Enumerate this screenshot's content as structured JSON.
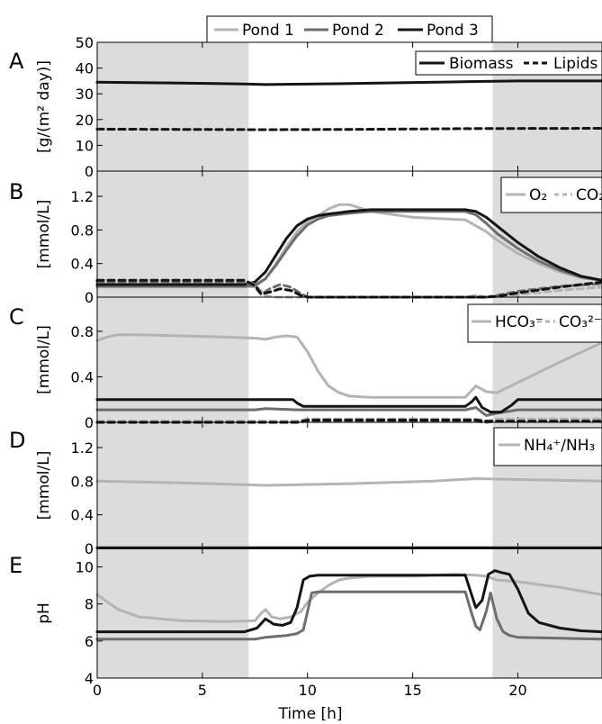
{
  "legend_top": [
    {
      "name": "Pond 1",
      "color": "#b4b4b4"
    },
    {
      "name": "Pond 2",
      "color": "#6e6e6e"
    },
    {
      "name": "Pond 3",
      "color": "#141414"
    }
  ],
  "xaxis": {
    "label": "Time [h]",
    "xlim": [
      0,
      24
    ],
    "ticks": [
      0,
      5,
      10,
      15,
      20
    ],
    "night_shading": [
      [
        0,
        7.2
      ],
      [
        18.8,
        24
      ]
    ]
  },
  "chart_data": [
    {
      "panel": "A",
      "type": "line",
      "ylabel": "[g/(m² day)]",
      "ylim": [
        0,
        50
      ],
      "yticks": [
        0,
        10,
        20,
        30,
        40,
        50
      ],
      "legend": [
        {
          "label": "Biomass",
          "style": "solid"
        },
        {
          "label": "Lipids",
          "style": "dashed"
        }
      ],
      "series": [
        {
          "pond": "Pond 3",
          "variable": "Biomass",
          "style": "solid",
          "x": [
            0,
            4,
            7,
            8,
            12,
            18,
            20,
            24
          ],
          "y": [
            34.5,
            34.2,
            33.8,
            33.6,
            34.0,
            34.8,
            35.0,
            35.0
          ]
        },
        {
          "pond": "Pond 3",
          "variable": "Lipids",
          "style": "dashed",
          "x": [
            0,
            8,
            12,
            18,
            24
          ],
          "y": [
            16.3,
            16.1,
            16.2,
            16.5,
            16.6
          ]
        }
      ]
    },
    {
      "panel": "B",
      "type": "line",
      "ylabel": "[mmol/L]",
      "ylim": [
        0,
        1.5
      ],
      "yticks": [
        0,
        0.4,
        0.8,
        1.2
      ],
      "ytick_labels": [
        "0",
        "0.4",
        "0.8",
        "1.2"
      ],
      "legend": [
        {
          "label": "O₂",
          "style": "solid"
        },
        {
          "label": "CO₂",
          "style": "dashed"
        }
      ],
      "series": [
        {
          "pond": "Pond 1",
          "variable": "O2",
          "style": "solid",
          "x": [
            0,
            7,
            7.5,
            8,
            8.5,
            9,
            9.5,
            10,
            10.5,
            11,
            11.5,
            12,
            13,
            15,
            17.5,
            18,
            18.5,
            19,
            20,
            21,
            22,
            23,
            24
          ],
          "y": [
            0.12,
            0.12,
            0.13,
            0.22,
            0.4,
            0.6,
            0.78,
            0.9,
            0.97,
            1.05,
            1.1,
            1.1,
            1.02,
            0.95,
            0.92,
            0.85,
            0.78,
            0.68,
            0.52,
            0.4,
            0.3,
            0.23,
            0.2
          ]
        },
        {
          "pond": "Pond 2",
          "variable": "O2",
          "style": "solid",
          "x": [
            0,
            7,
            7.5,
            8,
            8.5,
            9,
            9.5,
            10,
            10.5,
            11,
            12,
            13,
            15,
            17.5,
            18,
            18.5,
            19,
            20,
            21,
            22,
            23,
            24
          ],
          "y": [
            0.13,
            0.13,
            0.14,
            0.22,
            0.38,
            0.56,
            0.73,
            0.86,
            0.93,
            0.97,
            1.0,
            1.02,
            1.02,
            1.02,
            0.98,
            0.88,
            0.76,
            0.58,
            0.43,
            0.32,
            0.24,
            0.2
          ]
        },
        {
          "pond": "Pond 3",
          "variable": "O2",
          "style": "solid",
          "x": [
            0,
            7,
            7.5,
            8,
            8.5,
            9,
            9.5,
            10,
            10.5,
            11,
            12,
            13,
            15,
            17.5,
            18,
            18.5,
            19,
            20,
            21,
            22,
            23,
            24
          ],
          "y": [
            0.15,
            0.15,
            0.18,
            0.3,
            0.5,
            0.7,
            0.85,
            0.93,
            0.97,
            0.99,
            1.02,
            1.04,
            1.04,
            1.04,
            1.02,
            0.95,
            0.85,
            0.65,
            0.48,
            0.35,
            0.25,
            0.2
          ]
        },
        {
          "pond": "Pond 1",
          "variable": "CO2",
          "style": "dashed",
          "x": [
            0,
            7,
            7.5,
            8,
            8.5,
            9,
            9.5,
            10,
            17.5,
            18,
            18.5,
            19,
            20,
            22,
            24
          ],
          "y": [
            0.2,
            0.2,
            0.15,
            0.02,
            0.0,
            0.0,
            0.0,
            0.0,
            0.0,
            0.02,
            0.0,
            0.01,
            0.03,
            0.08,
            0.12
          ]
        },
        {
          "pond": "Pond 2",
          "variable": "CO2",
          "style": "dashed",
          "x": [
            0,
            7,
            7.5,
            7.8,
            8.2,
            8.7,
            9.2,
            9.7,
            10,
            17.5,
            18,
            18.5,
            19,
            20,
            22,
            24
          ],
          "y": [
            0.18,
            0.18,
            0.12,
            0.03,
            0.1,
            0.15,
            0.12,
            0.04,
            0.0,
            0.0,
            0.0,
            0.0,
            0.02,
            0.07,
            0.13,
            0.16
          ]
        },
        {
          "pond": "Pond 3",
          "variable": "CO2",
          "style": "dashed",
          "x": [
            0,
            7,
            7.5,
            7.8,
            8.2,
            8.7,
            9.2,
            9.7,
            10,
            17.5,
            18.5,
            19,
            20,
            22,
            24
          ],
          "y": [
            0.2,
            0.2,
            0.14,
            0.04,
            0.06,
            0.1,
            0.08,
            0.02,
            0.0,
            0.0,
            0.0,
            0.01,
            0.05,
            0.12,
            0.18
          ]
        }
      ]
    },
    {
      "panel": "C",
      "type": "line",
      "ylabel": "[mmol/L]",
      "ylim": [
        0,
        1.1
      ],
      "yticks": [
        0,
        0.4,
        0.8
      ],
      "ytick_labels": [
        "0",
        "0.4",
        "0.8"
      ],
      "legend": [
        {
          "label": "HCO₃⁻",
          "style": "solid"
        },
        {
          "label": "CO₃²⁻",
          "style": "dashed"
        }
      ],
      "series": [
        {
          "pond": "Pond 1",
          "variable": "HCO3-",
          "style": "solid",
          "x": [
            0,
            0.5,
            1,
            2,
            4,
            6,
            7.5,
            8,
            8.5,
            9,
            9.5,
            10,
            10.5,
            11,
            11.5,
            12,
            13,
            15,
            17.5,
            18,
            18.5,
            19,
            20,
            22,
            24
          ],
          "y": [
            0.72,
            0.75,
            0.77,
            0.77,
            0.76,
            0.75,
            0.74,
            0.73,
            0.75,
            0.76,
            0.75,
            0.62,
            0.45,
            0.32,
            0.26,
            0.23,
            0.22,
            0.22,
            0.22,
            0.32,
            0.27,
            0.26,
            0.35,
            0.53,
            0.7
          ]
        },
        {
          "pond": "Pond 2",
          "variable": "HCO3-",
          "style": "solid",
          "x": [
            0,
            7.5,
            8,
            9.5,
            10,
            17.5,
            18,
            18.5,
            19,
            20,
            24
          ],
          "y": [
            0.11,
            0.11,
            0.12,
            0.11,
            0.11,
            0.11,
            0.13,
            0.06,
            0.08,
            0.11,
            0.11
          ]
        },
        {
          "pond": "Pond 3",
          "variable": "HCO3-",
          "style": "solid",
          "x": [
            0,
            9.3,
            9.5,
            9.8,
            10.2,
            17.5,
            17.8,
            18,
            18.3,
            18.7,
            19.2,
            19.7,
            20,
            24
          ],
          "y": [
            0.2,
            0.2,
            0.17,
            0.14,
            0.14,
            0.14,
            0.18,
            0.22,
            0.13,
            0.09,
            0.09,
            0.15,
            0.2,
            0.2
          ]
        },
        {
          "pond": "Pond 1",
          "variable": "CO3 2-",
          "style": "dashed",
          "x": [
            0,
            9.5,
            10,
            18,
            18.5,
            19,
            24
          ],
          "y": [
            0.01,
            0.01,
            0.03,
            0.03,
            0.01,
            0.03,
            0.03
          ]
        },
        {
          "pond": "Pond 2",
          "variable": "CO3 2-",
          "style": "dashed",
          "x": [
            0,
            9.5,
            10,
            18,
            18.5,
            19,
            24
          ],
          "y": [
            0.0,
            0.0,
            0.01,
            0.01,
            0.0,
            0.01,
            0.01
          ]
        },
        {
          "pond": "Pond 3",
          "variable": "CO3 2-",
          "style": "dashed",
          "x": [
            0,
            9.5,
            10,
            18,
            18.5,
            19.5,
            24
          ],
          "y": [
            0.0,
            0.0,
            0.02,
            0.02,
            0.01,
            0.01,
            0.01
          ]
        }
      ]
    },
    {
      "panel": "D",
      "type": "line",
      "ylabel": "[mmol/L]",
      "ylim": [
        0,
        1.5
      ],
      "yticks": [
        0,
        0.4,
        0.8,
        1.2
      ],
      "ytick_labels": [
        "0",
        "0.4",
        "0.8",
        "1.2"
      ],
      "legend": [
        {
          "label": "NH₄⁺/NH₃",
          "style": "solid"
        }
      ],
      "series": [
        {
          "pond": "Pond 1",
          "variable": "NH4+/NH3",
          "style": "solid",
          "x": [
            0,
            4,
            8,
            12,
            16,
            18,
            20,
            24
          ],
          "y": [
            0.8,
            0.78,
            0.75,
            0.77,
            0.8,
            0.83,
            0.82,
            0.8
          ]
        },
        {
          "pond": "Pond 2",
          "variable": "NH4+/NH3",
          "style": "solid",
          "x": [
            0,
            24
          ],
          "y": [
            0.01,
            0.01
          ]
        },
        {
          "pond": "Pond 3",
          "variable": "NH4+/NH3",
          "style": "solid",
          "x": [
            0,
            24
          ],
          "y": [
            0.005,
            0.005
          ]
        }
      ]
    },
    {
      "panel": "E",
      "type": "line",
      "ylabel": "pH",
      "ylim": [
        4,
        11
      ],
      "yticks": [
        4,
        6,
        8,
        10
      ],
      "series": [
        {
          "pond": "Pond 1",
          "variable": "pH",
          "style": "solid",
          "x": [
            0,
            0.5,
            1,
            2,
            4,
            6,
            7.5,
            7.8,
            8,
            8.3,
            8.7,
            9.2,
            9.7,
            10,
            10.5,
            11,
            11.5,
            12,
            13,
            15,
            17,
            18,
            18.5,
            19,
            20,
            22,
            24
          ],
          "y": [
            8.5,
            8.1,
            7.7,
            7.3,
            7.1,
            7.05,
            7.1,
            7.5,
            7.7,
            7.3,
            7.2,
            7.3,
            7.6,
            8.1,
            8.6,
            9.0,
            9.3,
            9.4,
            9.5,
            9.5,
            9.6,
            9.55,
            9.5,
            9.3,
            9.2,
            8.9,
            8.5
          ]
        },
        {
          "pond": "Pond 2",
          "variable": "pH",
          "style": "solid",
          "x": [
            0,
            7,
            7.5,
            8,
            8.5,
            9,
            9.5,
            9.8,
            10,
            10.2,
            10.5,
            11,
            17.5,
            17.8,
            18,
            18.2,
            18.5,
            18.7,
            19,
            19.3,
            19.6,
            20,
            22,
            24
          ],
          "y": [
            6.1,
            6.1,
            6.1,
            6.2,
            6.25,
            6.3,
            6.4,
            6.6,
            7.6,
            8.6,
            8.65,
            8.65,
            8.65,
            7.5,
            6.8,
            6.6,
            7.6,
            8.6,
            7.2,
            6.5,
            6.3,
            6.2,
            6.15,
            6.1
          ]
        },
        {
          "pond": "Pond 3",
          "variable": "pH",
          "style": "solid",
          "x": [
            0,
            7,
            7.6,
            8,
            8.4,
            8.8,
            9.2,
            9.5,
            9.8,
            10.1,
            10.5,
            11,
            17.5,
            17.8,
            18,
            18.3,
            18.6,
            18.9,
            19.2,
            19.6,
            20,
            20.5,
            21,
            22,
            23,
            24
          ],
          "y": [
            6.5,
            6.5,
            6.7,
            7.2,
            6.9,
            6.85,
            7.0,
            7.8,
            9.3,
            9.5,
            9.55,
            9.55,
            9.55,
            8.5,
            7.8,
            8.2,
            9.6,
            9.8,
            9.7,
            9.6,
            8.8,
            7.5,
            7.0,
            6.7,
            6.55,
            6.5
          ]
        }
      ]
    }
  ]
}
